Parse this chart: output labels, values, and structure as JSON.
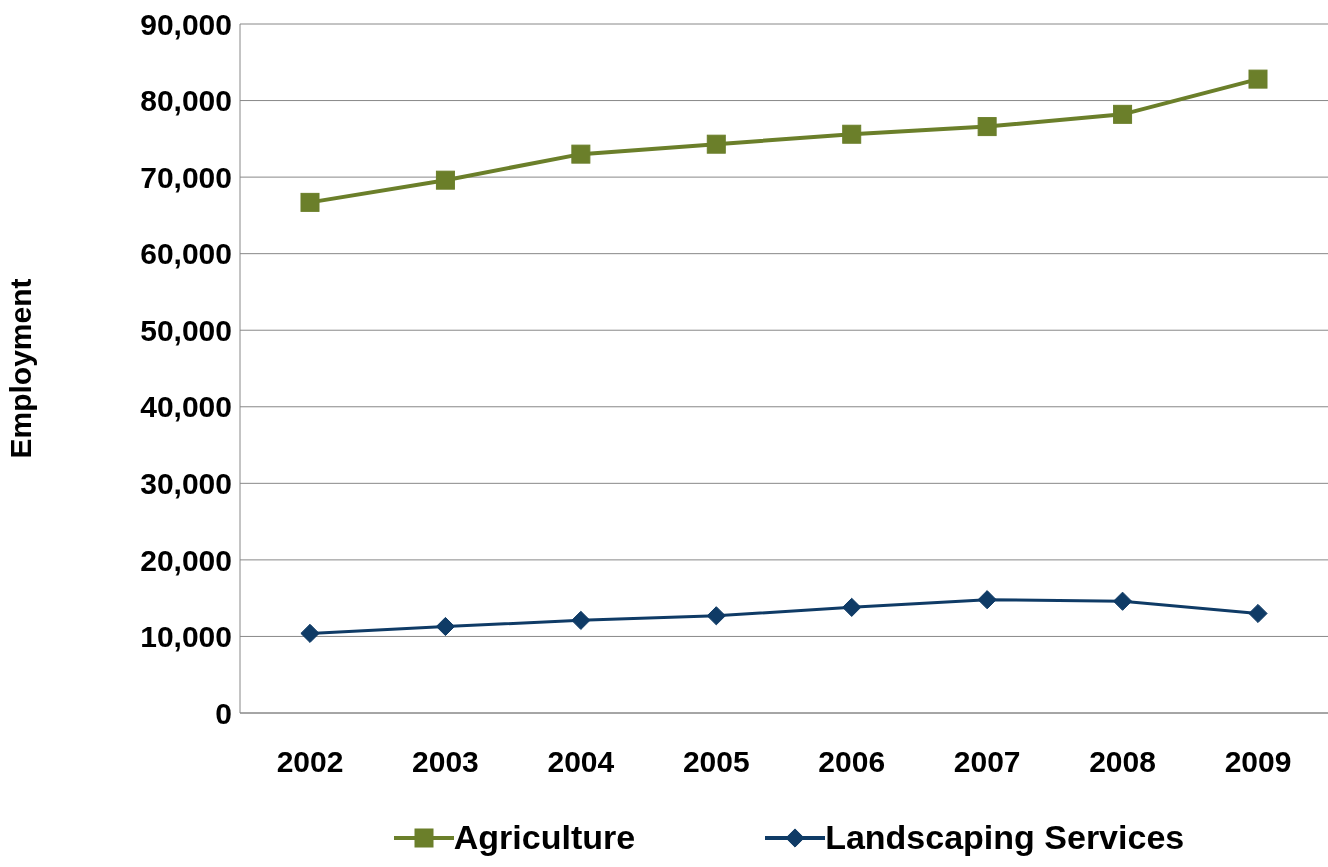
{
  "chart_data": {
    "type": "line",
    "ylabel": "Employment",
    "categories": [
      "2002",
      "2003",
      "2004",
      "2005",
      "2006",
      "2007",
      "2008",
      "2009"
    ],
    "series": [
      {
        "name": "Agriculture",
        "color": "#6b7f2a",
        "marker": "square",
        "values": [
          66700,
          69600,
          73000,
          74300,
          75600,
          76600,
          78200,
          82800
        ]
      },
      {
        "name": "Landscaping Services",
        "color": "#0f3b66",
        "marker": "diamond",
        "values": [
          10400,
          11300,
          12100,
          12700,
          13800,
          14800,
          14600,
          13000
        ]
      }
    ],
    "ylim": [
      0,
      90000
    ],
    "yticks": [
      0,
      {
        "value": 10000,
        "label": "10,000"
      },
      {
        "value": 20000,
        "label": "20,000"
      },
      {
        "value": 30000,
        "label": "30,000"
      },
      {
        "value": 40000,
        "label": "40,000"
      },
      {
        "value": 50000,
        "label": "50,000"
      },
      {
        "value": 60000,
        "label": "60,000"
      },
      {
        "value": 70000,
        "label": "70,000"
      },
      {
        "value": 80000,
        "label": "80,000"
      },
      {
        "value": 90000,
        "label": "90,000"
      }
    ],
    "grid": "y",
    "legend": "bottom"
  }
}
